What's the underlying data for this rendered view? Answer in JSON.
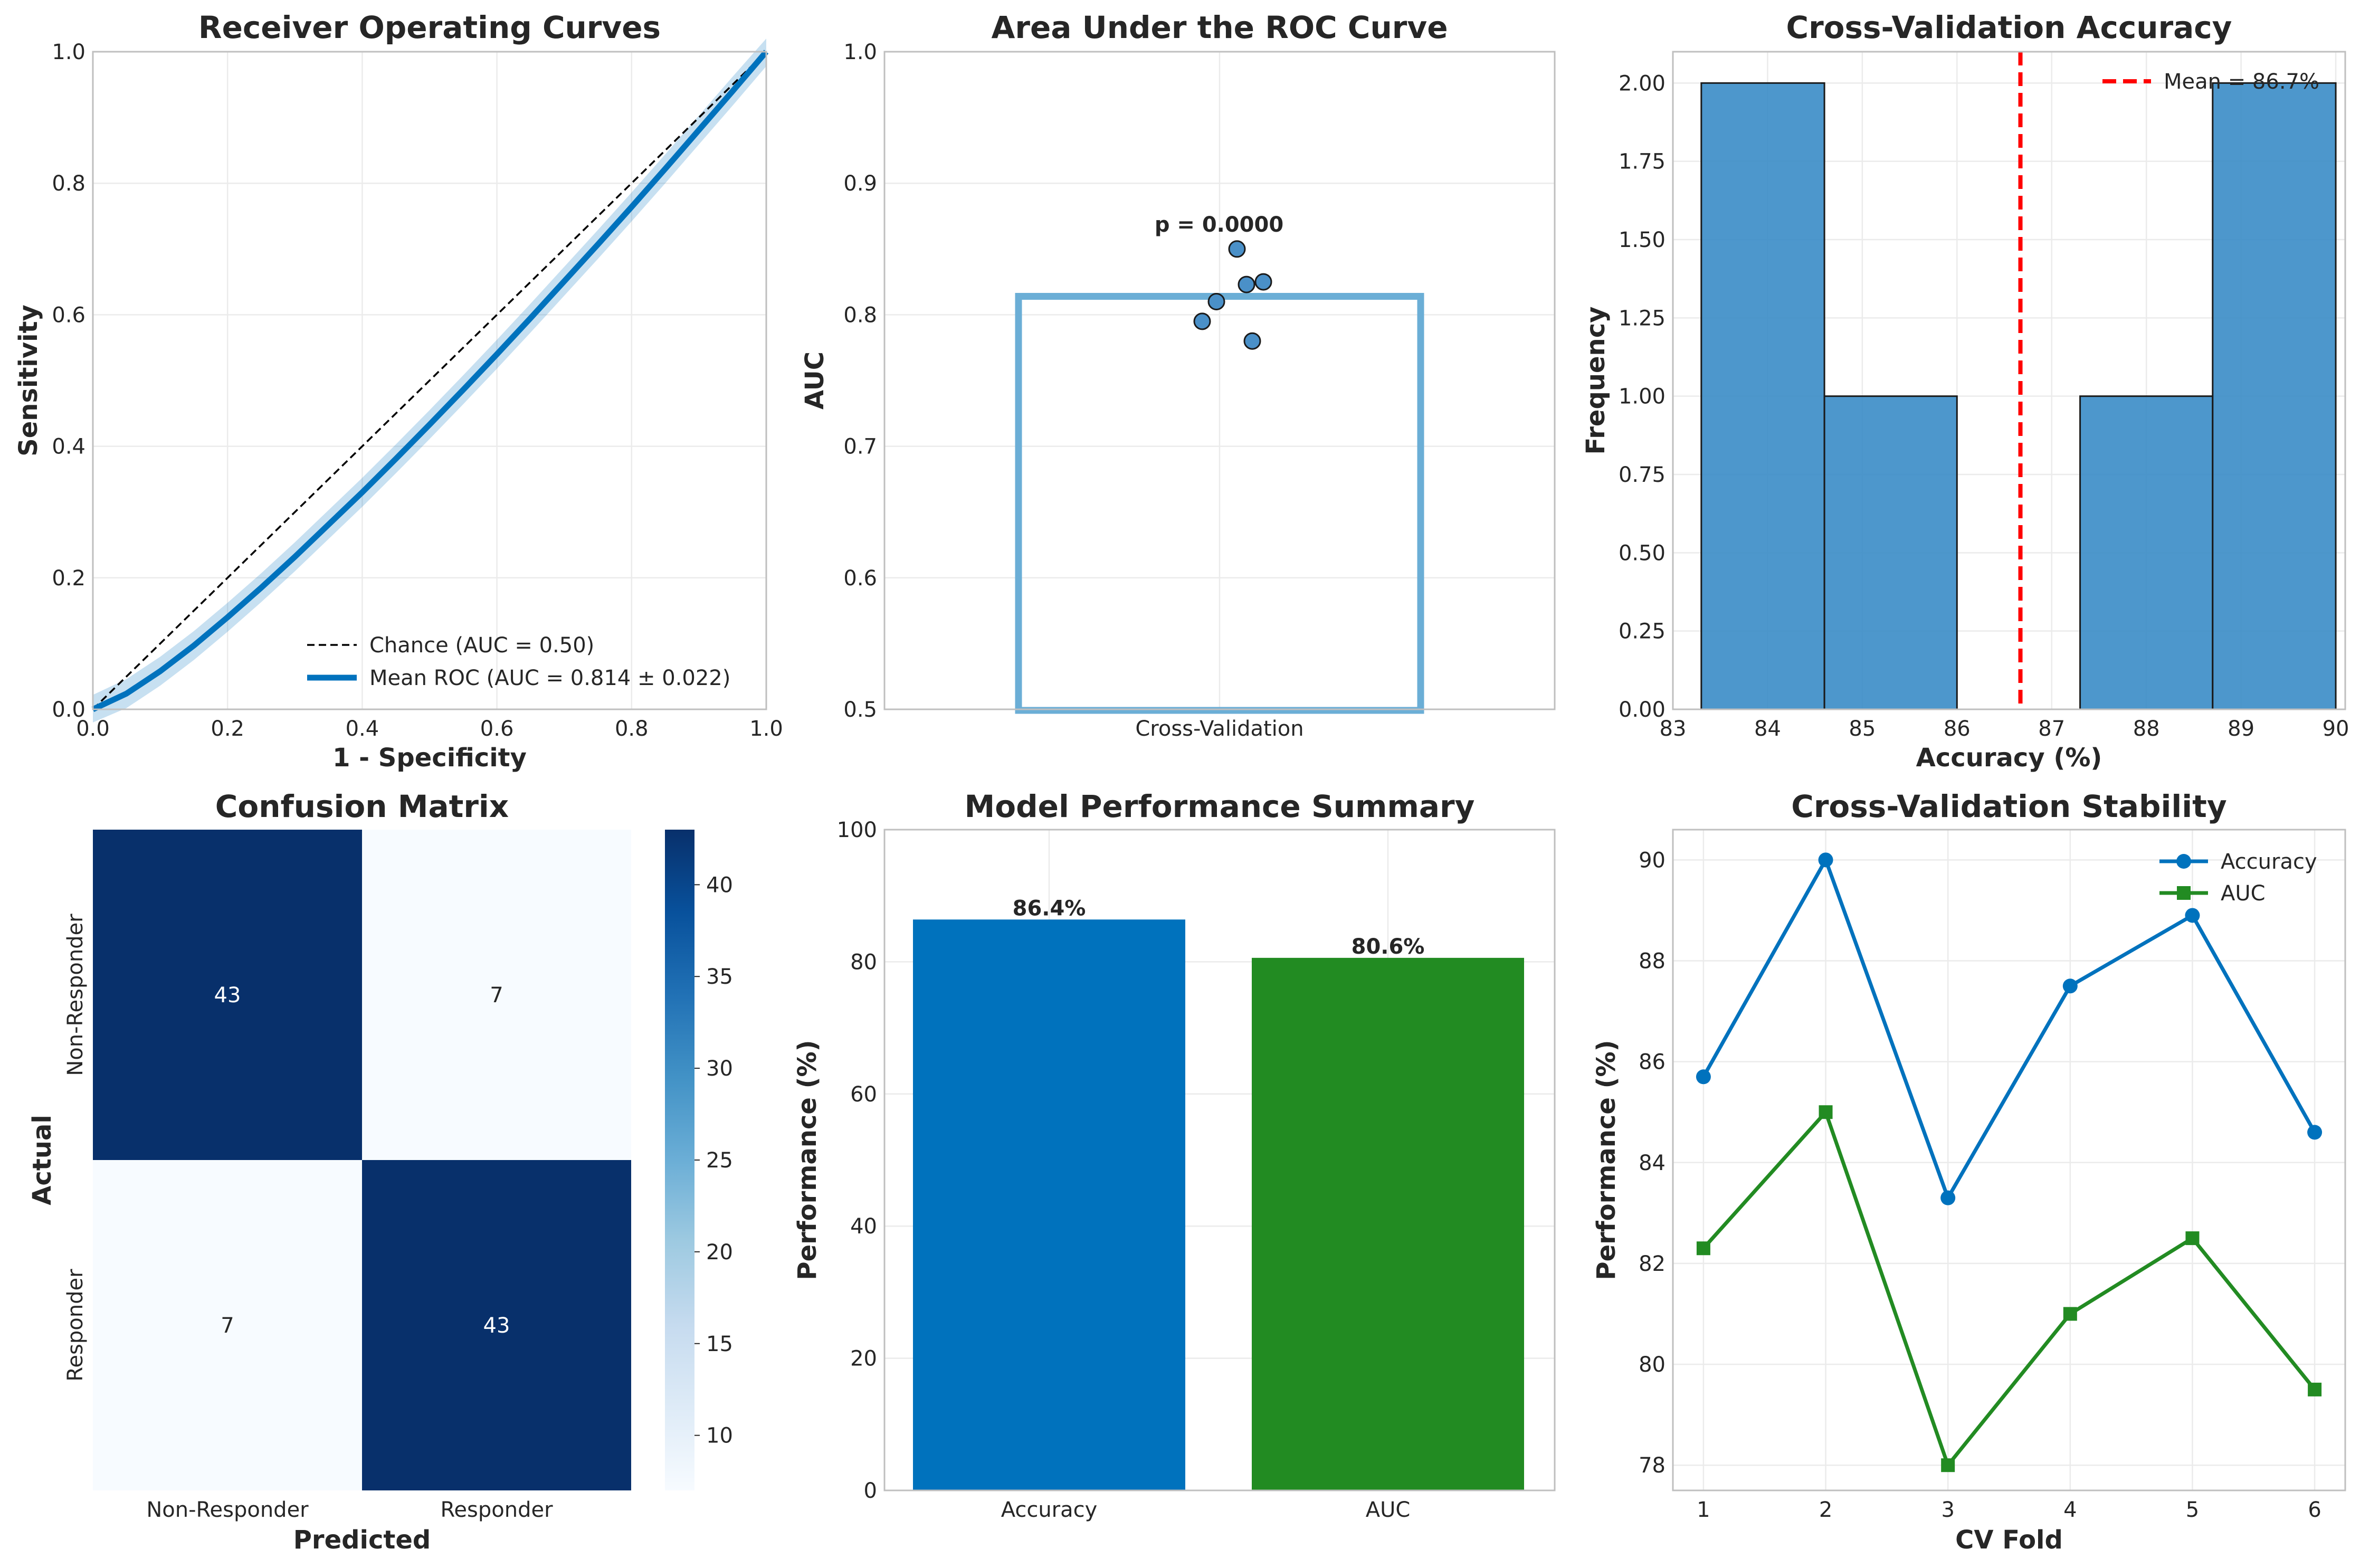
{
  "chart_data": [
    {
      "type": "line",
      "title": "Receiver Operating Curves",
      "xlabel": "1 - Specificity",
      "ylabel": "Sensitivity",
      "xlim": [
        0,
        1
      ],
      "ylim": [
        0,
        1
      ],
      "xticks": [
        "0.0",
        "0.2",
        "0.4",
        "0.6",
        "0.8",
        "1.0"
      ],
      "yticks": [
        "0.0",
        "0.2",
        "0.4",
        "0.6",
        "0.8",
        "1.0"
      ],
      "grid": true,
      "legend_position": "lower-right",
      "series": [
        {
          "name": "Chance (AUC = 0.50)",
          "style": "dashed",
          "color": "#000000",
          "x": [
            0,
            1
          ],
          "y": [
            0,
            1
          ]
        },
        {
          "name": "Mean ROC (AUC = 0.814 ± 0.022)",
          "style": "solid",
          "color": "#0072bd",
          "x": [
            0,
            0.05,
            0.1,
            0.15,
            0.2,
            0.25,
            0.3,
            0.35,
            0.4,
            0.45,
            0.5,
            0.55,
            0.6,
            0.65,
            0.7,
            0.75,
            0.8,
            0.85,
            0.9,
            0.95,
            1.0
          ],
          "y": [
            0,
            0.024,
            0.058,
            0.097,
            0.14,
            0.185,
            0.232,
            0.281,
            0.33,
            0.381,
            0.433,
            0.486,
            0.54,
            0.595,
            0.651,
            0.707,
            0.764,
            0.822,
            0.881,
            0.94,
            1.0
          ],
          "band": 0.022
        }
      ]
    },
    {
      "type": "bar",
      "title": "Area Under the ROC Curve",
      "ylabel": "AUC",
      "ylim": [
        0.5,
        1.0
      ],
      "yticks": [
        "0.5",
        "0.6",
        "0.7",
        "0.8",
        "0.9",
        "1.0"
      ],
      "categories": [
        "Cross-Validation"
      ],
      "values": [
        0.814
      ],
      "points": [
        0.85,
        0.823,
        0.825,
        0.81,
        0.795,
        0.78
      ],
      "annotation": "p = 0.0000",
      "color": "#6baed6",
      "point_color": "#4a90c8",
      "grid": true
    },
    {
      "type": "bar",
      "title": "Cross-Validation Accuracy",
      "xlabel": "Accuracy (%)",
      "ylabel": "Frequency",
      "xlim": [
        83,
        90.1
      ],
      "ylim": [
        0,
        2.1
      ],
      "xticks": [
        "83",
        "84",
        "85",
        "86",
        "87",
        "88",
        "89",
        "90"
      ],
      "yticks": [
        "0.00",
        "0.25",
        "0.50",
        "0.75",
        "1.00",
        "1.25",
        "1.50",
        "1.75",
        "2.00"
      ],
      "bins": [
        83.3,
        84.6,
        86.0,
        87.3,
        88.7,
        90.0
      ],
      "counts": [
        2,
        1,
        0,
        1,
        2
      ],
      "mean_line": 86.67,
      "legend": "Mean = 86.7%",
      "legend_position": "upper-right",
      "color": "#3a8cc7",
      "mean_color": "#ff0000",
      "grid": true
    },
    {
      "type": "heatmap",
      "title": "Confusion Matrix",
      "xlabel": "Predicted",
      "ylabel": "Actual",
      "x_categories": [
        "Non-Responder",
        "Responder"
      ],
      "y_categories": [
        "Non-Responder",
        "Responder"
      ],
      "values": [
        [
          43,
          7
        ],
        [
          7,
          43
        ]
      ],
      "colorbar_ticks": [
        "10",
        "15",
        "20",
        "25",
        "30",
        "35",
        "40"
      ],
      "colorbar_range": [
        7,
        43
      ],
      "colormap": "Blues"
    },
    {
      "type": "bar",
      "title": "Model Performance Summary",
      "ylabel": "Performance (%)",
      "ylim": [
        0,
        100
      ],
      "yticks": [
        "0",
        "20",
        "40",
        "60",
        "80",
        "100"
      ],
      "categories": [
        "Accuracy",
        "AUC"
      ],
      "values": [
        86.4,
        80.6
      ],
      "value_labels": [
        "86.4%",
        "80.6%"
      ],
      "colors": [
        "#0072bd",
        "#228b22"
      ],
      "grid": true
    },
    {
      "type": "line",
      "title": "Cross-Validation Stability",
      "xlabel": "CV Fold",
      "ylabel": "Performance (%)",
      "xlim": [
        0.75,
        6.25
      ],
      "ylim": [
        77.5,
        90.6
      ],
      "xticks": [
        "1",
        "2",
        "3",
        "4",
        "5",
        "6"
      ],
      "yticks": [
        "78",
        "80",
        "82",
        "84",
        "86",
        "88",
        "90"
      ],
      "x": [
        1,
        2,
        3,
        4,
        5,
        6
      ],
      "series": [
        {
          "name": "Accuracy",
          "marker": "circle",
          "color": "#0072bd",
          "values": [
            85.7,
            90.0,
            83.3,
            87.5,
            88.9,
            84.6
          ]
        },
        {
          "name": "AUC",
          "marker": "square",
          "color": "#228b22",
          "values": [
            82.3,
            85.0,
            78.0,
            81.0,
            82.5,
            79.5
          ]
        }
      ],
      "legend_position": "upper-right",
      "grid": true
    }
  ]
}
